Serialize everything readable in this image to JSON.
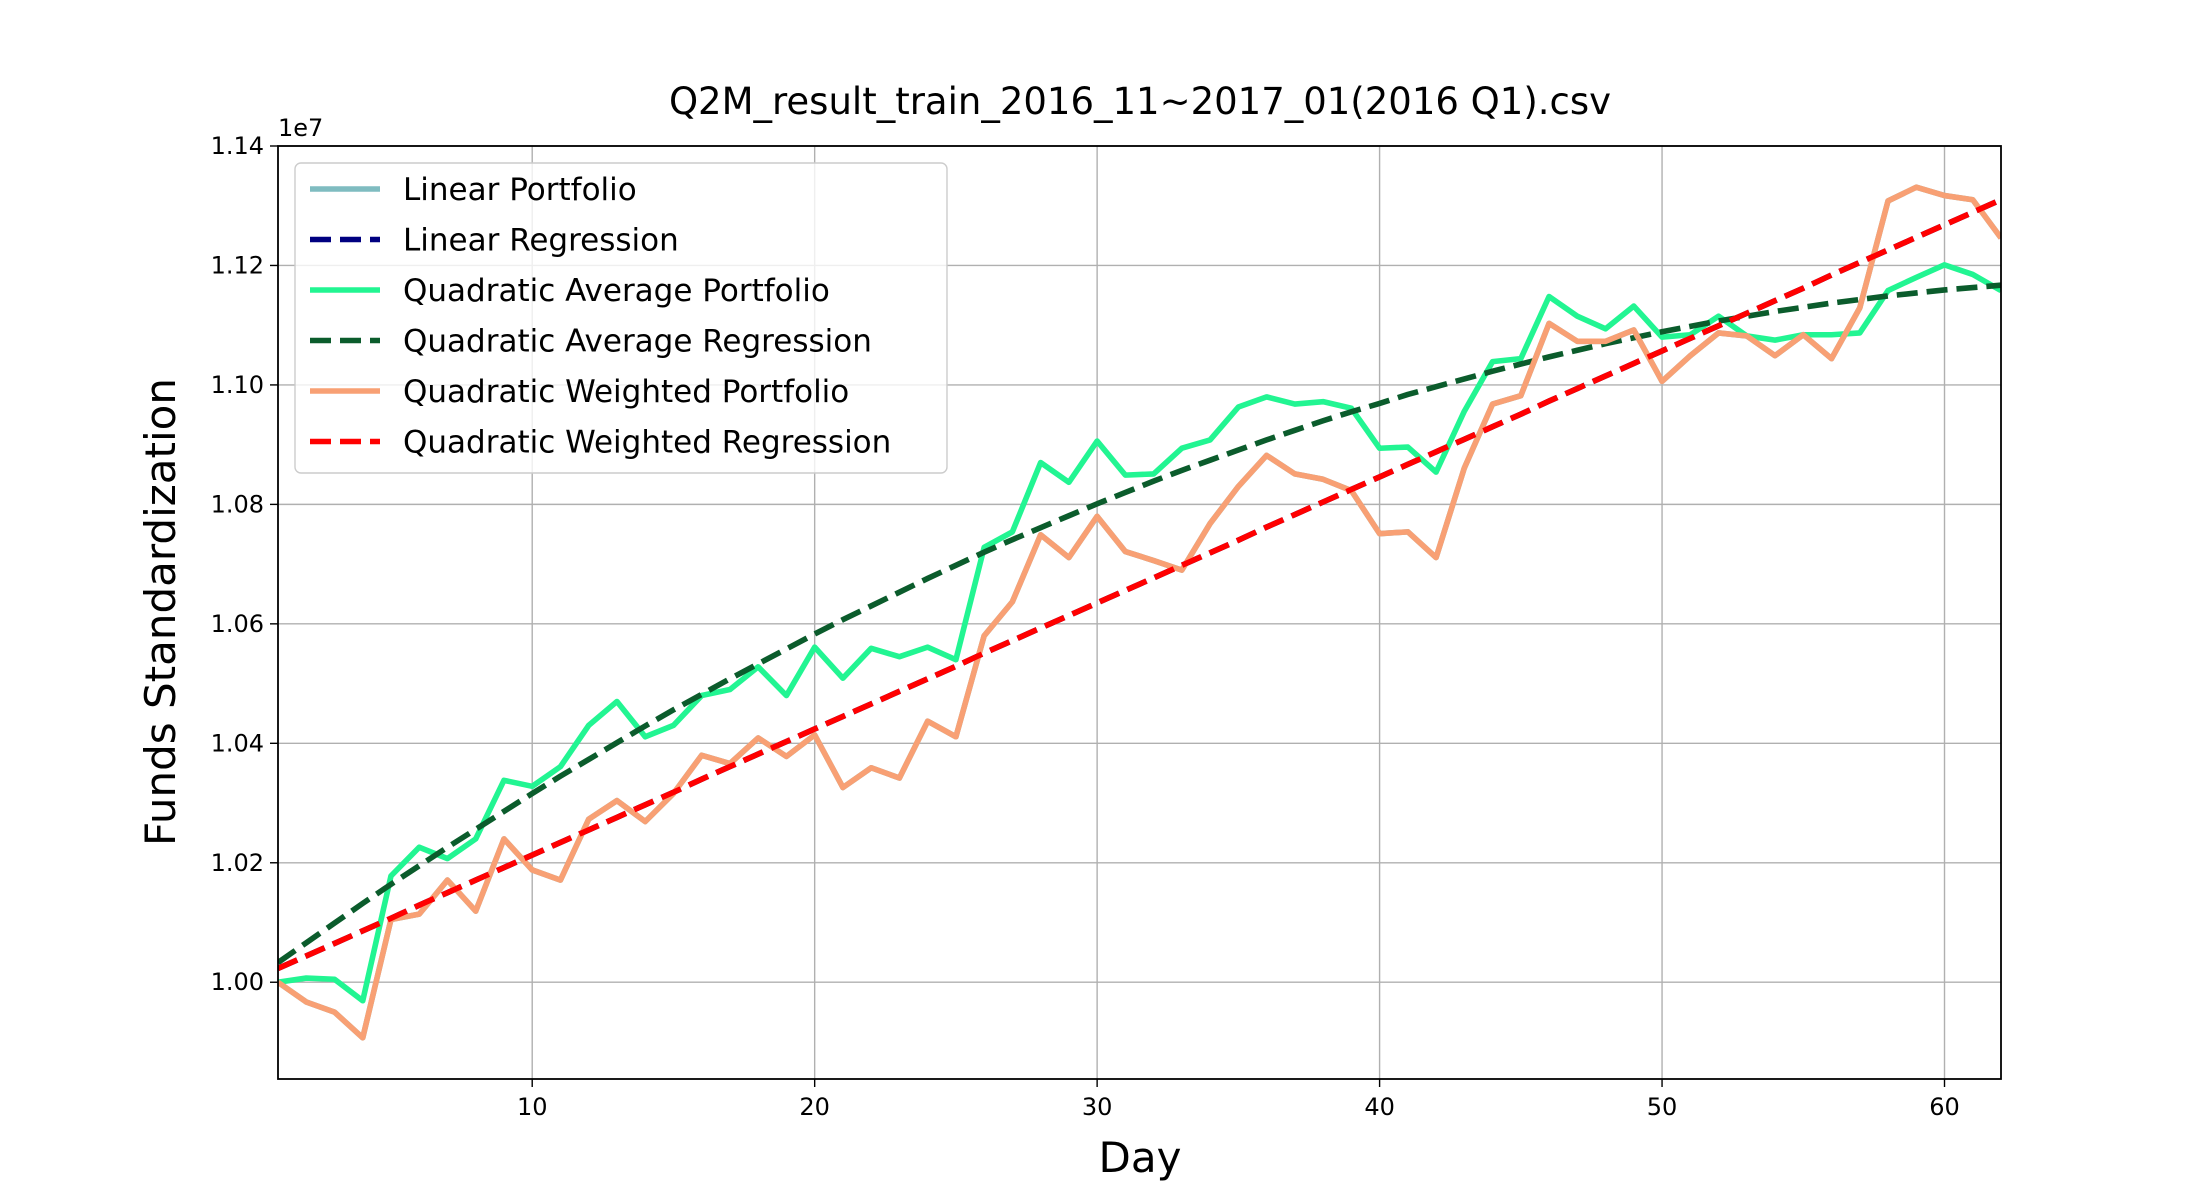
{
  "chart_data": {
    "type": "line",
    "title": "Q2M_result_train_2016_11~2017_01(2016 Q1).csv",
    "xlabel": "Day",
    "ylabel": "Funds Standardization",
    "offset_text": "1e7",
    "x": [
      1,
      2,
      3,
      4,
      5,
      6,
      7,
      8,
      9,
      10,
      11,
      12,
      13,
      14,
      15,
      16,
      17,
      18,
      19,
      20,
      21,
      22,
      23,
      24,
      25,
      26,
      27,
      28,
      29,
      30,
      31,
      32,
      33,
      34,
      35,
      36,
      37,
      38,
      39,
      40,
      41,
      42,
      43,
      44,
      45,
      46,
      47,
      48,
      49,
      50,
      51,
      52,
      53,
      54,
      55,
      56,
      57,
      58,
      59,
      60,
      61,
      62
    ],
    "xlim": [
      1,
      62
    ],
    "xticks": [
      10,
      20,
      30,
      40,
      50,
      60
    ],
    "ylim": [
      0.9838,
      1.14
    ],
    "yticks": [
      {
        "value": 1.0,
        "label": "1.00"
      },
      {
        "value": 1.02,
        "label": "1.02"
      },
      {
        "value": 1.04,
        "label": "1.04"
      },
      {
        "value": 1.06,
        "label": "1.06"
      },
      {
        "value": 1.08,
        "label": "1.08"
      },
      {
        "value": 1.1,
        "label": "1.10"
      },
      {
        "value": 1.12,
        "label": "1.12"
      },
      {
        "value": 1.14,
        "label": "1.14"
      }
    ],
    "grid": true,
    "legend": "upper left",
    "series": [
      {
        "name": "Linear Portfolio",
        "color": "#7fbcc0",
        "style": "solid",
        "values": [
          1.0,
          0.9967,
          0.995,
          0.9907,
          1.0105,
          1.0114,
          1.0171,
          1.0119,
          1.024,
          1.0188,
          1.0171,
          1.0273,
          1.0304,
          1.0269,
          1.0316,
          1.038,
          1.0366,
          1.0409,
          1.0378,
          1.0414,
          1.0326,
          1.0359,
          1.0342,
          1.0437,
          1.0411,
          1.058,
          1.0637,
          1.0749,
          1.0711,
          1.078,
          1.0721,
          1.0706,
          1.069,
          1.0768,
          1.083,
          1.0882,
          1.0851,
          1.0842,
          1.0823,
          1.0751,
          1.0754,
          1.0711,
          1.0861,
          1.0968,
          1.0982,
          1.1103,
          1.1073,
          1.1073,
          1.1092,
          1.1006,
          1.1049,
          1.1087,
          1.1082,
          1.1049,
          1.1084,
          1.1044,
          1.1129,
          1.1308,
          1.1331,
          1.1317,
          1.131,
          1.1246
        ]
      },
      {
        "name": "Linear Regression",
        "color": "#000080",
        "style": "dashed",
        "values": [
          1.0023,
          1.0044,
          1.0065,
          1.0086,
          1.0107,
          1.0129,
          1.015,
          1.0171,
          1.0192,
          1.0213,
          1.0234,
          1.0255,
          1.0276,
          1.0297,
          1.0318,
          1.034,
          1.0361,
          1.0382,
          1.0403,
          1.0424,
          1.0445,
          1.0466,
          1.0487,
          1.0508,
          1.0529,
          1.0551,
          1.0572,
          1.0593,
          1.0614,
          1.0635,
          1.0656,
          1.0677,
          1.0698,
          1.0719,
          1.074,
          1.0762,
          1.0783,
          1.0804,
          1.0825,
          1.0846,
          1.0867,
          1.0888,
          1.0909,
          1.093,
          1.0951,
          1.0973,
          1.0994,
          1.1015,
          1.1036,
          1.1057,
          1.1078,
          1.1099,
          1.112,
          1.1141,
          1.1162,
          1.1184,
          1.1205,
          1.1226,
          1.1247,
          1.1268,
          1.1289,
          1.131
        ]
      },
      {
        "name": "Quadratic Average Portfolio",
        "color": "#22f592",
        "style": "solid",
        "values": [
          1.0,
          1.0007,
          1.0005,
          0.9969,
          1.0178,
          1.0226,
          1.0207,
          1.024,
          1.0338,
          1.0328,
          1.0361,
          1.043,
          1.047,
          1.0411,
          1.043,
          1.048,
          1.049,
          1.0528,
          1.048,
          1.0561,
          1.0509,
          1.0559,
          1.0545,
          1.0561,
          1.054,
          1.0728,
          1.0754,
          1.087,
          1.0837,
          1.0906,
          1.0849,
          1.0851,
          1.0894,
          1.0908,
          1.0963,
          1.098,
          1.0968,
          1.0972,
          1.0961,
          1.0894,
          1.0896,
          1.0854,
          1.0956,
          1.1039,
          1.1044,
          1.1148,
          1.1115,
          1.1094,
          1.1132,
          1.108,
          1.1084,
          1.1115,
          1.1082,
          1.1075,
          1.1084,
          1.1084,
          1.1087,
          1.1158,
          1.118,
          1.1201,
          1.1185,
          1.1158
        ]
      },
      {
        "name": "Quadratic Average Regression",
        "color": "#0b5c2c",
        "style": "dashed",
        "values": [
          1.0033,
          1.0066,
          1.0099,
          1.0132,
          1.0164,
          1.0195,
          1.0226,
          1.0256,
          1.0286,
          1.0316,
          1.0345,
          1.0373,
          1.0401,
          1.0429,
          1.0456,
          1.0482,
          1.0508,
          1.0533,
          1.0558,
          1.0583,
          1.0607,
          1.063,
          1.0653,
          1.0676,
          1.0698,
          1.072,
          1.0741,
          1.0761,
          1.0781,
          1.0801,
          1.082,
          1.0839,
          1.0857,
          1.0874,
          1.0891,
          1.0908,
          1.0924,
          1.094,
          1.0955,
          1.0969,
          1.0984,
          1.0997,
          1.101,
          1.1023,
          1.1035,
          1.1047,
          1.1058,
          1.1069,
          1.1079,
          1.1089,
          1.1098,
          1.1107,
          1.1115,
          1.1123,
          1.113,
          1.1137,
          1.1143,
          1.1149,
          1.1154,
          1.1159,
          1.1163,
          1.1167
        ]
      },
      {
        "name": "Quadratic Weighted Portfolio",
        "color": "#f8a074",
        "style": "solid",
        "values": [
          1.0,
          0.9967,
          0.995,
          0.9907,
          1.0105,
          1.0114,
          1.0171,
          1.0119,
          1.024,
          1.0188,
          1.0171,
          1.0273,
          1.0304,
          1.0269,
          1.0316,
          1.038,
          1.0366,
          1.0409,
          1.0378,
          1.0414,
          1.0326,
          1.0359,
          1.0342,
          1.0437,
          1.0411,
          1.058,
          1.0637,
          1.0749,
          1.0711,
          1.078,
          1.0721,
          1.0706,
          1.069,
          1.0768,
          1.083,
          1.0882,
          1.0851,
          1.0842,
          1.0823,
          1.0751,
          1.0754,
          1.0711,
          1.0861,
          1.0968,
          1.0982,
          1.1103,
          1.1073,
          1.1073,
          1.1092,
          1.1006,
          1.1049,
          1.1087,
          1.1082,
          1.1049,
          1.1084,
          1.1044,
          1.1129,
          1.1308,
          1.1331,
          1.1317,
          1.131,
          1.1246
        ]
      },
      {
        "name": "Quadratic Weighted Regression",
        "color": "#ff0000",
        "style": "dashed",
        "values": [
          1.0023,
          1.0044,
          1.0065,
          1.0086,
          1.0107,
          1.0129,
          1.015,
          1.0171,
          1.0192,
          1.0213,
          1.0234,
          1.0255,
          1.0276,
          1.0297,
          1.0318,
          1.034,
          1.0361,
          1.0382,
          1.0403,
          1.0424,
          1.0445,
          1.0466,
          1.0487,
          1.0508,
          1.0529,
          1.0551,
          1.0572,
          1.0593,
          1.0614,
          1.0635,
          1.0656,
          1.0677,
          1.0698,
          1.0719,
          1.074,
          1.0762,
          1.0783,
          1.0804,
          1.0825,
          1.0846,
          1.0867,
          1.0888,
          1.0909,
          1.093,
          1.0951,
          1.0973,
          1.0994,
          1.1015,
          1.1036,
          1.1057,
          1.1078,
          1.1099,
          1.112,
          1.1141,
          1.1162,
          1.1184,
          1.1205,
          1.1226,
          1.1247,
          1.1268,
          1.1289,
          1.131
        ]
      }
    ]
  }
}
